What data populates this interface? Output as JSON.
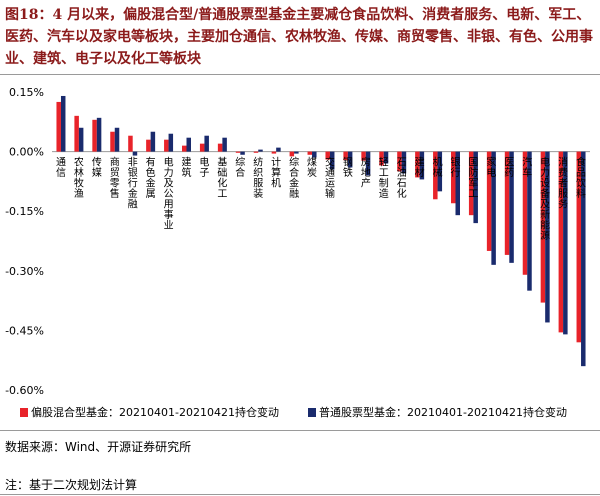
{
  "caption": "图18：4 月以来，偏股混合型/普通股票型基金主要减仓食品饮料、消费者服务、电新、军工、医药、汽车以及家电等板块，主要加仓通信、农林牧渔、传媒、商贸零售、非银、有色、公用事业、建筑、电子以及化工等板块",
  "colors": {
    "series1": "#e8232a",
    "series2": "#1a2b6d",
    "caption": "#8b1a1a"
  },
  "chart_data": {
    "type": "bar",
    "ylim": [
      -0.6,
      0.15
    ],
    "yticks": [
      "0.15%",
      "0.00%",
      "-0.15%",
      "-0.30%",
      "-0.45%",
      "-0.60%"
    ],
    "ytick_values": [
      0.15,
      0.0,
      -0.15,
      -0.3,
      -0.45,
      -0.6
    ],
    "categories": [
      "通信",
      "农林牧渔",
      "传媒",
      "商贸零售",
      "非银行金融",
      "有色金属",
      "电力及公用事业",
      "建筑",
      "电子",
      "基础化工",
      "综合",
      "纺织服装",
      "计算机",
      "综合金融",
      "煤炭",
      "交通运输",
      "钢铁",
      "房地产",
      "轻工制造",
      "石油石化",
      "建材",
      "机械",
      "银行",
      "国防军工",
      "家电",
      "医药",
      "汽车",
      "电力设备及新能源",
      "消费者服务",
      "食品饮料"
    ],
    "series": [
      {
        "name": "偏股混合型基金：20210401-20210421持仓变动",
        "values": [
          0.125,
          0.09,
          0.08,
          0.05,
          0.04,
          0.03,
          0.03,
          0.015,
          0.02,
          0.02,
          -0.003,
          -0.003,
          -0.005,
          -0.012,
          -0.008,
          -0.02,
          -0.022,
          -0.023,
          -0.035,
          -0.05,
          -0.065,
          -0.12,
          -0.13,
          -0.16,
          -0.25,
          -0.26,
          -0.31,
          -0.38,
          -0.455,
          -0.48
        ]
      },
      {
        "name": "普通股票型基金：20210401-20210421持仓变动",
        "values": [
          0.14,
          0.06,
          0.085,
          0.06,
          -0.01,
          0.05,
          0.045,
          0.035,
          0.04,
          0.035,
          -0.008,
          0.005,
          0.01,
          -0.005,
          -0.015,
          -0.045,
          -0.04,
          -0.06,
          -0.03,
          -0.055,
          -0.07,
          -0.1,
          -0.16,
          -0.18,
          -0.285,
          -0.28,
          -0.35,
          -0.43,
          -0.46,
          -0.54
        ]
      }
    ]
  },
  "legend": [
    {
      "label": "偏股混合型基金：20210401-20210421持仓变动"
    },
    {
      "label": "普通股票型基金：20210401-20210421持仓变动"
    }
  ],
  "source": "数据来源：Wind、开源证券研究所",
  "note": "注：基于二次规划法计算"
}
